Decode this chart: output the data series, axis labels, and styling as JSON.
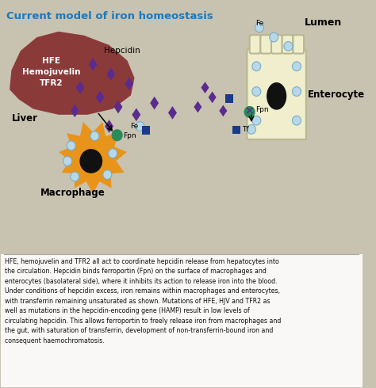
{
  "title": "Current model of iron homeostasis",
  "title_color": "#1a7abf",
  "bg_color": "#c8c2b0",
  "white_bg": "#f5f5f0",
  "liver_color": "#8B3A3A",
  "macrophage_color": "#E8931A",
  "enterocyte_color": "#f0eecc",
  "enterocyte_border": "#b8b890",
  "nucleus_color": "#111111",
  "fe_circle_color": "#b8d8e8",
  "fe_circle_edge": "#7aaec8",
  "hepcidin_color": "#5B2C8D",
  "fpn_color": "#2a8a5a",
  "blue_square_color": "#1a3a8a",
  "tf_label": "Tf",
  "fpn_label": "Fpn",
  "fe_label": "Fe",
  "liver_label": "Liver",
  "macrophage_label": "Macrophage",
  "enterocyte_label": "Enterocyte",
  "lumen_label": "Lumen",
  "hepcidin_label": "Hepcidin",
  "liver_text": "HFE\nHemojuvelin\nTFR2",
  "caption": "HFE, hemojuvelin and TFR2 all act to coordinate hepcidin release from hepatocytes into\nthe circulation. Hepcidin binds ferroportin (Fpn) on the surface of macrophages and\nenterocytes (basolateral side), where it inhibits its action to release iron into the blood.\nUnder conditions of hepcidin excess, iron remains within macrophages and enterocytes,\nwith transferrin remaining unsaturated as shown. Mutations of HFE, HJV and TFR2 as\nwell as mutations in the hepcidin-encoding gene (HAMP) result in low levels of\ncirculating hepcidin. This allows ferroportin to freely release iron from macrophages and\nthe gut, with saturation of transferrin, development of non-transferrin-bound iron and\nconsequent haemochromatosis."
}
